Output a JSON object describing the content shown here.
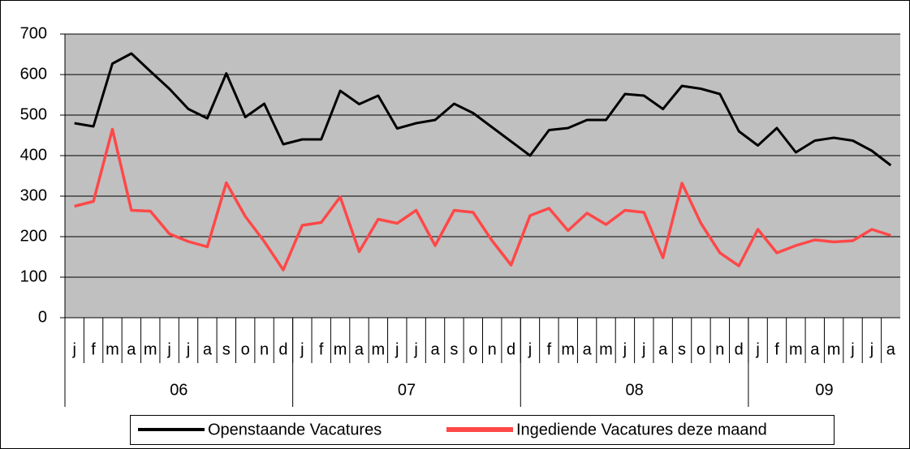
{
  "chart_data": {
    "type": "line",
    "categories": [
      "j",
      "f",
      "m",
      "a",
      "m",
      "j",
      "j",
      "a",
      "s",
      "o",
      "n",
      "d",
      "j",
      "f",
      "m",
      "a",
      "m",
      "j",
      "j",
      "a",
      "s",
      "o",
      "n",
      "d",
      "j",
      "f",
      "m",
      "a",
      "m",
      "j",
      "j",
      "a",
      "s",
      "o",
      "n",
      "d",
      "j",
      "f",
      "m",
      "a",
      "m",
      "j",
      "j",
      "a"
    ],
    "category_groups": [
      {
        "label": "06",
        "count": 12
      },
      {
        "label": "07",
        "count": 12
      },
      {
        "label": "08",
        "count": 12
      },
      {
        "label": "09",
        "count": 8
      }
    ],
    "series": [
      {
        "name": "Openstaande Vacatures",
        "color": "#000000",
        "values": [
          480,
          472,
          627,
          652,
          608,
          565,
          515,
          492,
          603,
          495,
          528,
          428,
          440,
          440,
          560,
          527,
          548,
          467,
          480,
          488,
          528,
          505,
          470,
          435,
          400,
          463,
          468,
          488,
          488,
          552,
          548,
          515,
          572,
          565,
          552,
          460,
          425,
          468,
          408,
          437,
          444,
          437,
          412,
          376
        ]
      },
      {
        "name": "Ingediende Vacatures deze maand",
        "color": "#ff4848",
        "values": [
          275,
          287,
          465,
          265,
          263,
          207,
          188,
          175,
          333,
          250,
          188,
          118,
          228,
          235,
          298,
          163,
          243,
          233,
          265,
          178,
          265,
          260,
          190,
          130,
          252,
          270,
          215,
          258,
          230,
          265,
          260,
          148,
          332,
          233,
          160,
          128,
          218,
          160,
          178,
          192,
          187,
          190,
          218,
          203
        ]
      }
    ],
    "ylim": [
      0,
      700
    ],
    "yticks": [
      0,
      100,
      200,
      300,
      400,
      500,
      600,
      700
    ],
    "grid": true,
    "legend": "bottom"
  }
}
